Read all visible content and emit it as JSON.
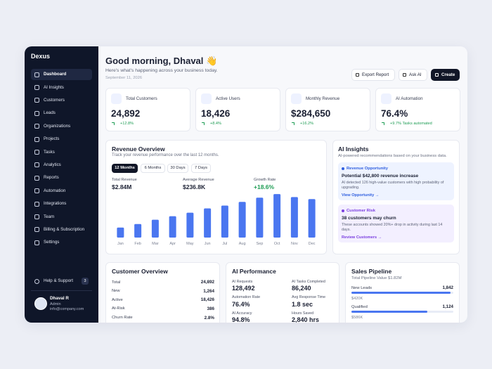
{
  "sidebar": {
    "brand": "Dexus",
    "nav": [
      "Dashboard",
      "AI Insights",
      "Customers",
      "Leads",
      "Organizations",
      "Projects",
      "Tasks",
      "Analytics",
      "Reports",
      "Automation",
      "Integrations",
      "Team",
      "Billing & Subscription",
      "Settings"
    ],
    "help": "Help & Support",
    "help_badge": "3",
    "user": {
      "name": "Dhaval R",
      "role": "Admin",
      "email": "info@company.com"
    }
  },
  "header": {
    "title": "Good morning, Dhaval 👋",
    "subtitle": "Here's what's happening across your business today.",
    "date": "September 11, 2026",
    "buttons": [
      "Export Report",
      "Ask AI",
      "Create"
    ]
  },
  "kpis": [
    {
      "label": "Total Customers",
      "value": "24,892",
      "change": "+12.8%"
    },
    {
      "label": "Active Users",
      "value": "18,426",
      "change": "+8.4%"
    },
    {
      "label": "Monthly Revenue",
      "value": "$284,650",
      "change": "+16.2%"
    },
    {
      "label": "AI Automation",
      "value": "76.4%",
      "change": "+9.7% Tasks automated"
    }
  ],
  "revenue_overview": {
    "title": "Revenue Overview",
    "subtitle": "Track your revenue performance over the last 12 months.",
    "tabs": [
      "12 Months",
      "6 Months",
      "30 Days",
      "7 Days"
    ],
    "stats": [
      {
        "label": "Total Revenue",
        "value": "$2.84M"
      },
      {
        "label": "Average Revenue",
        "value": "$236.8K"
      },
      {
        "label": "Growth Rate",
        "value": "+18.6%"
      }
    ]
  },
  "chart_data": {
    "type": "bar",
    "categories": [
      "Jan",
      "Feb",
      "Mar",
      "Apr",
      "May",
      "Jun",
      "Jul",
      "Aug",
      "Sep",
      "Oct",
      "Nov",
      "Dec"
    ],
    "values": [
      82,
      111,
      146,
      175,
      204,
      239,
      262,
      292,
      327,
      356,
      332,
      315
    ],
    "color": "#4a76f0",
    "ylim": [
      0,
      380
    ]
  },
  "ai_insights": {
    "title": "AI Insights",
    "subtitle": "AI-powered recommendations based on your business data.",
    "cards": [
      {
        "tag": "Revenue Opportunity",
        "title": "Potential $42,800 revenue increase",
        "text": "AI detected 126 high-value customers with high probability of upgrading.",
        "link": "View Opportunity →"
      },
      {
        "tag": "Customer Risk",
        "title": "38 customers may churn",
        "text": "These accounts showed 20%+ drop in activity during last 14 days.",
        "link": "Review Customers →"
      }
    ]
  },
  "customer_overview": {
    "title": "Customer Overview",
    "rows": [
      [
        "Total",
        "24,892"
      ],
      [
        "New",
        "1,264"
      ],
      [
        "Active",
        "18,426"
      ],
      [
        "At-Risk",
        "386"
      ],
      [
        "Churn Rate",
        "2.8%"
      ]
    ]
  },
  "ai_performance": {
    "title": "AI Performance",
    "items": [
      [
        "AI Requests",
        "128,492"
      ],
      [
        "AI Tasks Completed",
        "86,240"
      ],
      [
        "Automation Rate",
        "76.4%"
      ],
      [
        "Avg Response Time",
        "1.8 sec"
      ],
      [
        "AI Accuracy",
        "94.8%"
      ],
      [
        "Hours Saved",
        "2,840 hrs"
      ]
    ]
  },
  "sales_pipeline": {
    "title": "Sales Pipeline",
    "subtitle": "Total Pipeline Value $1.82M",
    "stages": [
      {
        "name": "New Leads",
        "count": "1,842",
        "value": "$420K"
      },
      {
        "name": "Qualified",
        "count": "1,124",
        "value": "$586K"
      }
    ]
  }
}
